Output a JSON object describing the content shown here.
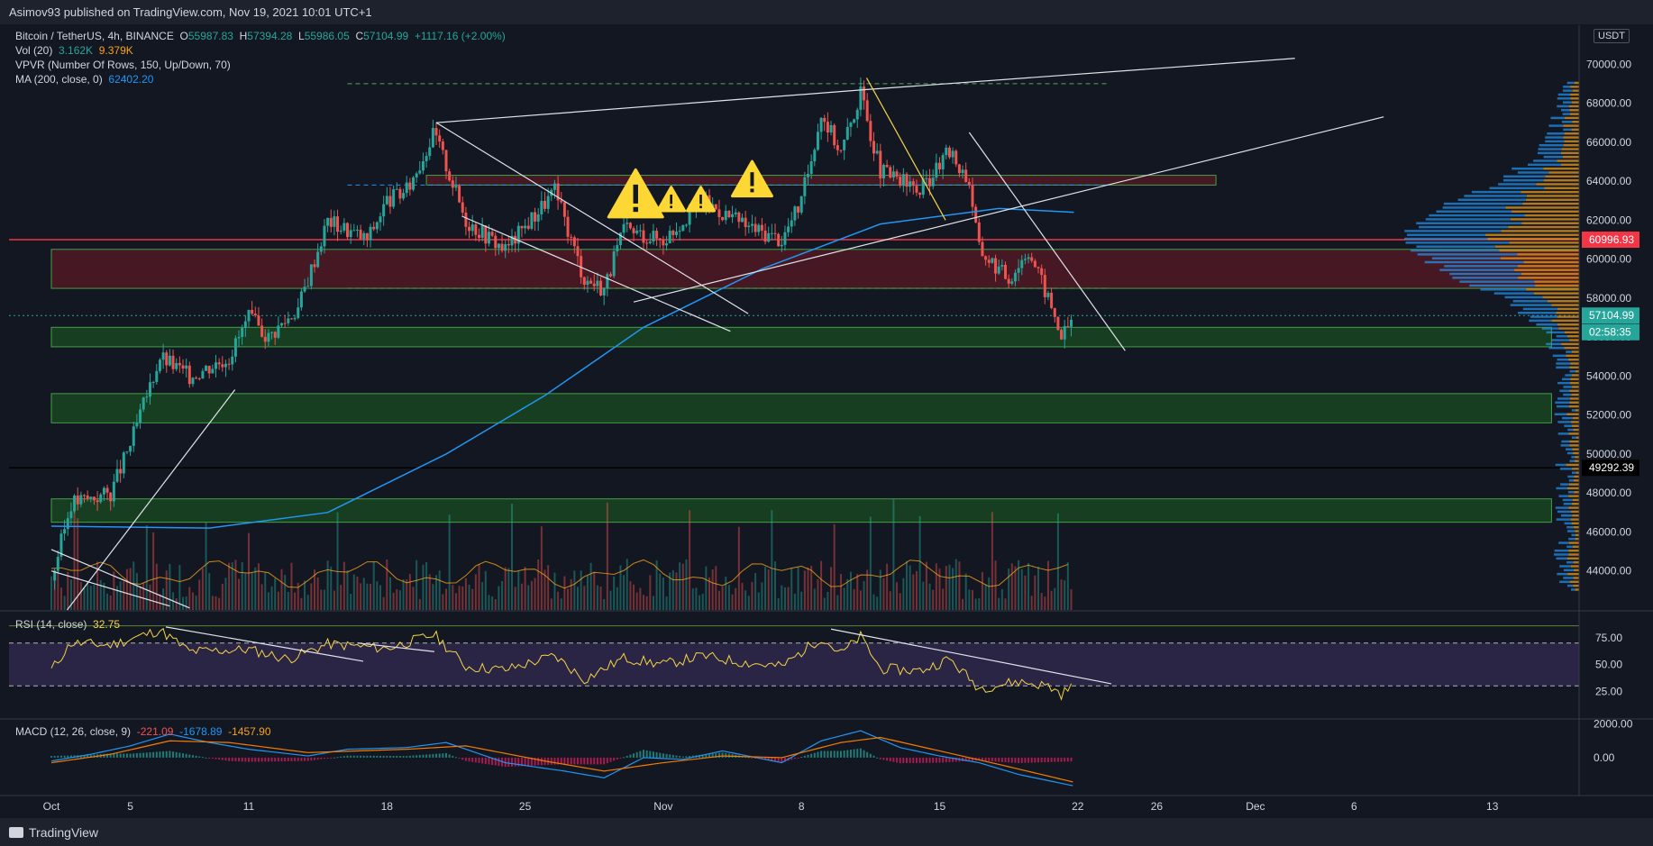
{
  "header": {
    "published": "Asimov93 published on TradingView.com, Nov 19, 2021 10:01 UTC+1"
  },
  "legend": {
    "symbol": "Bitcoin / TetherUS, 4h, BINANCE",
    "o_label": "O",
    "o": "55987.83",
    "h_label": "H",
    "h": "57394.28",
    "l_label": "L",
    "l": "55986.05",
    "c_label": "C",
    "c": "57104.99",
    "change": "+1117.16 (+2.00%)",
    "vol_label": "Vol (20)",
    "vol1": "3.162K",
    "vol2": "9.379K",
    "vpvr_label": "VPVR (Number Of Rows, 150, Up/Down, 70)",
    "ma_label": "MA (200, close, 0)",
    "ma_value": "62402.20"
  },
  "rsi_legend": {
    "label": "RSI (14, close)",
    "value": "32.75"
  },
  "macd_legend": {
    "label": "MACD (12, 26, close, 9)",
    "v1": "-221.09",
    "v2": "-1678.89",
    "v3": "-1457.90"
  },
  "currency": "USDT",
  "footer": {
    "brand": "TradingView"
  },
  "colors": {
    "bg": "#131722",
    "up": "#26a69a",
    "down": "#ef5350",
    "ma": "#2196f3",
    "rsi": "#f5d547",
    "macd": "#2196f3",
    "signal": "#f57c00",
    "zone_green": "#1b5e20",
    "zone_red": "#5d1a24"
  },
  "chart_data": [
    {
      "type": "candlestick",
      "title": "Bitcoin / TetherUS, 4h, BINANCE",
      "timeframe": "4h",
      "y_ticks": [
        44000,
        46000,
        48000,
        50000,
        52000,
        54000,
        56000,
        58000,
        60000,
        62000,
        64000,
        66000,
        68000,
        70000
      ],
      "y_tick_labels": [
        "44000.00",
        "46000.00",
        "48000.00",
        "50000.00",
        "52000.00",
        "54000.00",
        "56000.00",
        "58000.00",
        "60000.00",
        "62000.00",
        "64000.00",
        "66000.00",
        "68000.00",
        "70000.00"
      ],
      "ylim": [
        42000,
        72000
      ],
      "x_ticks": [
        {
          "label": "Oct",
          "day": 0
        },
        {
          "label": "5",
          "day": 4
        },
        {
          "label": "11",
          "day": 10
        },
        {
          "label": "18",
          "day": 17
        },
        {
          "label": "25",
          "day": 24
        },
        {
          "label": "Nov",
          "day": 31
        },
        {
          "label": "8",
          "day": 38
        },
        {
          "label": "15",
          "day": 45
        },
        {
          "label": "22",
          "day": 52
        },
        {
          "label": "26",
          "day": 56
        },
        {
          "label": "Dec",
          "day": 61
        },
        {
          "label": "6",
          "day": 66
        },
        {
          "label": "13",
          "day": 73
        }
      ],
      "price_path": [
        {
          "day": 0,
          "price": 43500
        },
        {
          "day": 1,
          "price": 47500
        },
        {
          "day": 3,
          "price": 48000
        },
        {
          "day": 4,
          "price": 50500
        },
        {
          "day": 5.5,
          "price": 55000
        },
        {
          "day": 7,
          "price": 54000
        },
        {
          "day": 9,
          "price": 55000
        },
        {
          "day": 10,
          "price": 57000
        },
        {
          "day": 11,
          "price": 56000
        },
        {
          "day": 12.5,
          "price": 57500
        },
        {
          "day": 14,
          "price": 62000
        },
        {
          "day": 16,
          "price": 61000
        },
        {
          "day": 17,
          "price": 63000
        },
        {
          "day": 18,
          "price": 63500
        },
        {
          "day": 19.4,
          "price": 66500
        },
        {
          "day": 21,
          "price": 62000
        },
        {
          "day": 23,
          "price": 60500
        },
        {
          "day": 25.5,
          "price": 63500
        },
        {
          "day": 27,
          "price": 59000
        },
        {
          "day": 28,
          "price": 58500
        },
        {
          "day": 29,
          "price": 61500
        },
        {
          "day": 31,
          "price": 61000
        },
        {
          "day": 33,
          "price": 63000
        },
        {
          "day": 35,
          "price": 61800
        },
        {
          "day": 37,
          "price": 61000
        },
        {
          "day": 38,
          "price": 63000
        },
        {
          "day": 39,
          "price": 67500
        },
        {
          "day": 40,
          "price": 65500
        },
        {
          "day": 41,
          "price": 68500
        },
        {
          "day": 42,
          "price": 64500
        },
        {
          "day": 44,
          "price": 63500
        },
        {
          "day": 45.5,
          "price": 65500
        },
        {
          "day": 46.5,
          "price": 64000
        },
        {
          "day": 47,
          "price": 60500
        },
        {
          "day": 48.5,
          "price": 59000
        },
        {
          "day": 49.5,
          "price": 60500
        },
        {
          "day": 50.5,
          "price": 58000
        },
        {
          "day": 51.2,
          "price": 56000
        },
        {
          "day": 51.8,
          "price": 57100
        }
      ],
      "ma200_path": [
        {
          "day": 0,
          "price": 46300
        },
        {
          "day": 8,
          "price": 46200
        },
        {
          "day": 14,
          "price": 47000
        },
        {
          "day": 20,
          "price": 50000
        },
        {
          "day": 25,
          "price": 53000
        },
        {
          "day": 30,
          "price": 56500
        },
        {
          "day": 36,
          "price": 59500
        },
        {
          "day": 42,
          "price": 61800
        },
        {
          "day": 48,
          "price": 62600
        },
        {
          "day": 51.8,
          "price": 62400
        }
      ],
      "zones": [
        {
          "kind": "support",
          "low": 55500,
          "high": 56500,
          "from_day": 0,
          "to_day": 76
        },
        {
          "kind": "support",
          "low": 51600,
          "high": 53100,
          "from_day": 0,
          "to_day": 76
        },
        {
          "kind": "support",
          "low": 46500,
          "high": 47700,
          "from_day": 0,
          "to_day": 76
        },
        {
          "kind": "resistance",
          "low": 58500,
          "high": 60500,
          "from_day": 0,
          "to_day": 79
        },
        {
          "kind": "resistance",
          "low": 63800,
          "high": 64300,
          "from_day": 19,
          "to_day": 59
        }
      ],
      "horizontal_lines": [
        {
          "price": 69000,
          "style": "dashed",
          "color": "#4caf50"
        },
        {
          "price": 63800,
          "style": "dashed",
          "color": "#2196f3"
        },
        {
          "price": 58500,
          "style": "dashed",
          "color": "#4caf50"
        },
        {
          "price": 60996.93,
          "style": "solid",
          "color": "#f23645"
        },
        {
          "price": 57104.99,
          "style": "dotted",
          "color": "#26a69a"
        },
        {
          "price": 49292.39,
          "style": "solid",
          "color": "#000000"
        }
      ],
      "price_labels": [
        {
          "text": "60996.93",
          "price": 60996.93,
          "bg": "#f23645"
        },
        {
          "text": "57104.99",
          "price": 57104.99,
          "bg": "#26a69a"
        },
        {
          "text": "02:58:35",
          "price": 56250,
          "bg": "#26a69a"
        },
        {
          "text": "49292.39",
          "price": 49292.39,
          "bg": "#000000"
        }
      ],
      "trendlines": [
        {
          "from": {
            "day": 19.5,
            "price": 67000
          },
          "to": {
            "day": 41.3,
            "price": 68700
          }
        },
        {
          "from": {
            "day": 41.3,
            "price": 68700
          },
          "to": {
            "day": 63,
            "price": 70300
          }
        },
        {
          "from": {
            "day": 19.5,
            "price": 67000
          },
          "to": {
            "day": 35.3,
            "price": 57200
          }
        },
        {
          "from": {
            "day": 20.8,
            "price": 62200
          },
          "to": {
            "day": 34.4,
            "price": 56300
          }
        },
        {
          "from": {
            "day": 29.5,
            "price": 57800
          },
          "to": {
            "day": 67.5,
            "price": 67300
          }
        },
        {
          "from": {
            "day": 46.5,
            "price": 66500
          },
          "to": {
            "day": 54.4,
            "price": 55300
          }
        },
        {
          "from": {
            "day": 0.8,
            "price": 42000
          },
          "to": {
            "day": 9.3,
            "price": 53300
          }
        },
        {
          "from": {
            "day": 0,
            "price": 45100
          },
          "to": {
            "day": 7,
            "price": 42100
          }
        },
        {
          "from": {
            "day": 0,
            "price": 44000
          },
          "to": {
            "day": 6,
            "price": 42200
          }
        }
      ],
      "yellow_line": {
        "from": {
          "day": 41.3,
          "price": 69300
        },
        "to": {
          "day": 45.3,
          "price": 62000
        }
      },
      "warnings": [
        {
          "day": 29.6,
          "price": 63200,
          "size": "large"
        },
        {
          "day": 31.4,
          "price": 63000,
          "size": "small"
        },
        {
          "day": 32.9,
          "price": 63000,
          "size": "small"
        },
        {
          "day": 35.5,
          "price": 64000,
          "size": "medium"
        }
      ]
    },
    {
      "type": "line",
      "title": "RSI (14, close)",
      "y_ticks": [
        25,
        50,
        75
      ],
      "y_tick_labels": [
        "25.00",
        "50.00",
        "75.00"
      ],
      "ylim": [
        0,
        100
      ],
      "band": [
        30,
        70
      ],
      "series": [
        {
          "name": "RSI",
          "points": [
            {
              "day": 0,
              "value": 45
            },
            {
              "day": 1,
              "value": 70
            },
            {
              "day": 3,
              "value": 68
            },
            {
              "day": 5.5,
              "value": 82
            },
            {
              "day": 7,
              "value": 62
            },
            {
              "day": 10,
              "value": 64
            },
            {
              "day": 12,
              "value": 55
            },
            {
              "day": 14,
              "value": 69
            },
            {
              "day": 17,
              "value": 65
            },
            {
              "day": 19.4,
              "value": 78
            },
            {
              "day": 21,
              "value": 48
            },
            {
              "day": 23,
              "value": 45
            },
            {
              "day": 25.5,
              "value": 58
            },
            {
              "day": 27,
              "value": 36
            },
            {
              "day": 29,
              "value": 56
            },
            {
              "day": 31,
              "value": 50
            },
            {
              "day": 33,
              "value": 58
            },
            {
              "day": 35,
              "value": 52
            },
            {
              "day": 37,
              "value": 48
            },
            {
              "day": 39,
              "value": 75
            },
            {
              "day": 40,
              "value": 60
            },
            {
              "day": 41,
              "value": 76
            },
            {
              "day": 42,
              "value": 46
            },
            {
              "day": 44,
              "value": 44
            },
            {
              "day": 45.5,
              "value": 55
            },
            {
              "day": 47,
              "value": 28
            },
            {
              "day": 49,
              "value": 34
            },
            {
              "day": 50.5,
              "value": 30
            },
            {
              "day": 51.2,
              "value": 22
            },
            {
              "day": 51.8,
              "value": 32.75
            }
          ]
        }
      ],
      "trendlines": [
        {
          "from": {
            "day": 5.8,
            "value": 85
          },
          "to": {
            "day": 15.8,
            "value": 53
          }
        },
        {
          "from": {
            "day": 15.5,
            "value": 70
          },
          "to": {
            "day": 19.4,
            "value": 62
          }
        },
        {
          "from": {
            "day": 39.5,
            "value": 83
          },
          "to": {
            "day": 53.7,
            "value": 32
          }
        }
      ]
    },
    {
      "type": "line",
      "title": "MACD (12, 26, close, 9)",
      "y_ticks": [
        0,
        2000
      ],
      "y_tick_labels": [
        "0.00",
        "2000.00"
      ],
      "ylim": [
        -2200,
        2300
      ],
      "series": [
        {
          "name": "MACD",
          "points": [
            {
              "day": 0,
              "value": -200
            },
            {
              "day": 2,
              "value": 200
            },
            {
              "day": 4,
              "value": 700
            },
            {
              "day": 6,
              "value": 1400
            },
            {
              "day": 8,
              "value": 900
            },
            {
              "day": 10,
              "value": 500
            },
            {
              "day": 13,
              "value": 100
            },
            {
              "day": 15,
              "value": 500
            },
            {
              "day": 18,
              "value": 600
            },
            {
              "day": 20,
              "value": 900
            },
            {
              "day": 23,
              "value": -300
            },
            {
              "day": 26,
              "value": -800
            },
            {
              "day": 28,
              "value": -1200
            },
            {
              "day": 30,
              "value": 0
            },
            {
              "day": 32,
              "value": -100
            },
            {
              "day": 34,
              "value": 400
            },
            {
              "day": 37,
              "value": -300
            },
            {
              "day": 39,
              "value": 1000
            },
            {
              "day": 41,
              "value": 1600
            },
            {
              "day": 43,
              "value": 600
            },
            {
              "day": 45,
              "value": 100
            },
            {
              "day": 47,
              "value": -300
            },
            {
              "day": 49,
              "value": -1000
            },
            {
              "day": 51.8,
              "value": -1679
            }
          ]
        },
        {
          "name": "Signal",
          "points": [
            {
              "day": 0,
              "value": -300
            },
            {
              "day": 3,
              "value": 200
            },
            {
              "day": 6,
              "value": 1000
            },
            {
              "day": 9,
              "value": 900
            },
            {
              "day": 13,
              "value": 300
            },
            {
              "day": 18,
              "value": 500
            },
            {
              "day": 21,
              "value": 700
            },
            {
              "day": 25,
              "value": -200
            },
            {
              "day": 28,
              "value": -800
            },
            {
              "day": 31,
              "value": -300
            },
            {
              "day": 34,
              "value": 100
            },
            {
              "day": 37,
              "value": 0
            },
            {
              "day": 40,
              "value": 900
            },
            {
              "day": 42,
              "value": 1200
            },
            {
              "day": 45,
              "value": 400
            },
            {
              "day": 48,
              "value": -400
            },
            {
              "day": 51.8,
              "value": -1458
            }
          ]
        }
      ]
    }
  ]
}
